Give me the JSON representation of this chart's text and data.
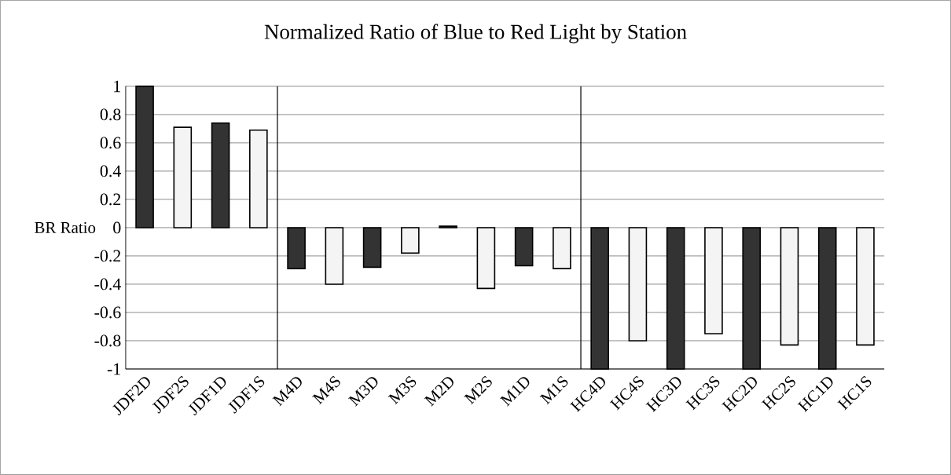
{
  "chart_data": {
    "type": "bar",
    "title": "Normalized Ratio of Blue to Red Light by Station",
    "ylabel": "BR Ratio",
    "categories": [
      "JDF2D",
      "JDF2S",
      "JDF1D",
      "JDF1S",
      "M4D",
      "M4S",
      "M3D",
      "M3S",
      "M2D",
      "M2S",
      "M1D",
      "M1S",
      "HC4D",
      "HC4S",
      "HC3D",
      "HC3S",
      "HC2D",
      "HC2S",
      "HC1D",
      "HC1S"
    ],
    "values": [
      1,
      0.71,
      0.74,
      0.69,
      -0.29,
      -0.4,
      -0.28,
      -0.18,
      0.01,
      -0.43,
      -0.27,
      -0.29,
      -1,
      -0.8,
      -1,
      -0.75,
      -1,
      -0.83,
      -1,
      -0.83
    ],
    "colors": [
      "#333333",
      "#f4f4f4",
      "#333333",
      "#f4f4f4",
      "#333333",
      "#f4f4f4",
      "#333333",
      "#f4f4f4",
      "#333333",
      "#f4f4f4",
      "#333333",
      "#f4f4f4",
      "#333333",
      "#f4f4f4",
      "#333333",
      "#f4f4f4",
      "#333333",
      "#f4f4f4",
      "#333333",
      "#f4f4f4"
    ],
    "ylim": [
      -1,
      1
    ],
    "yticks": [
      -1,
      -0.8,
      -0.6,
      -0.4,
      -0.2,
      0,
      0.2,
      0.4,
      0.6,
      0.8,
      1
    ],
    "grid": "y"
  }
}
